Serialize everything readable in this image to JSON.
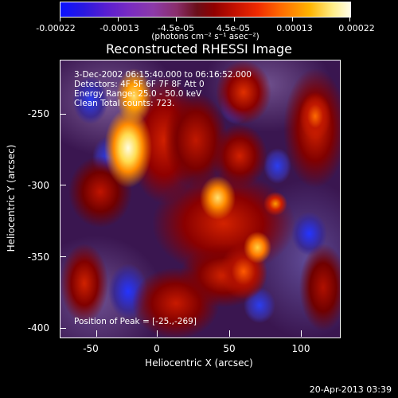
{
  "colorbar": {
    "ticks": [
      "-0.00022",
      "-0.00013",
      "-4.5e-05",
      "4.5e-05",
      "0.00013",
      "0.00022"
    ],
    "units": "(photons cm⁻² s⁻¹ asec⁻²)"
  },
  "title": "Reconstructed RHESSI Image",
  "info": {
    "time_range": "3-Dec-2002 06:15:40.000 to 06:16:52.000",
    "detectors": "Detectors: 4F 5F 6F 7F 8F  Att 0",
    "energy": "Energy Range: 25.0 - 50.0 keV",
    "clean": "Clean     Total counts: 723.",
    "peak": "Position of Peak = [-25.,-269]"
  },
  "axes": {
    "x_title": "Heliocentric X (arcsec)",
    "y_title": "Heliocentric Y (arcsec)",
    "x_ticks": [
      "-50",
      "0",
      "50",
      "100"
    ],
    "y_ticks": [
      "-250",
      "-300",
      "-350",
      "-400"
    ]
  },
  "footer": "20-Apr-2013 03:39"
}
